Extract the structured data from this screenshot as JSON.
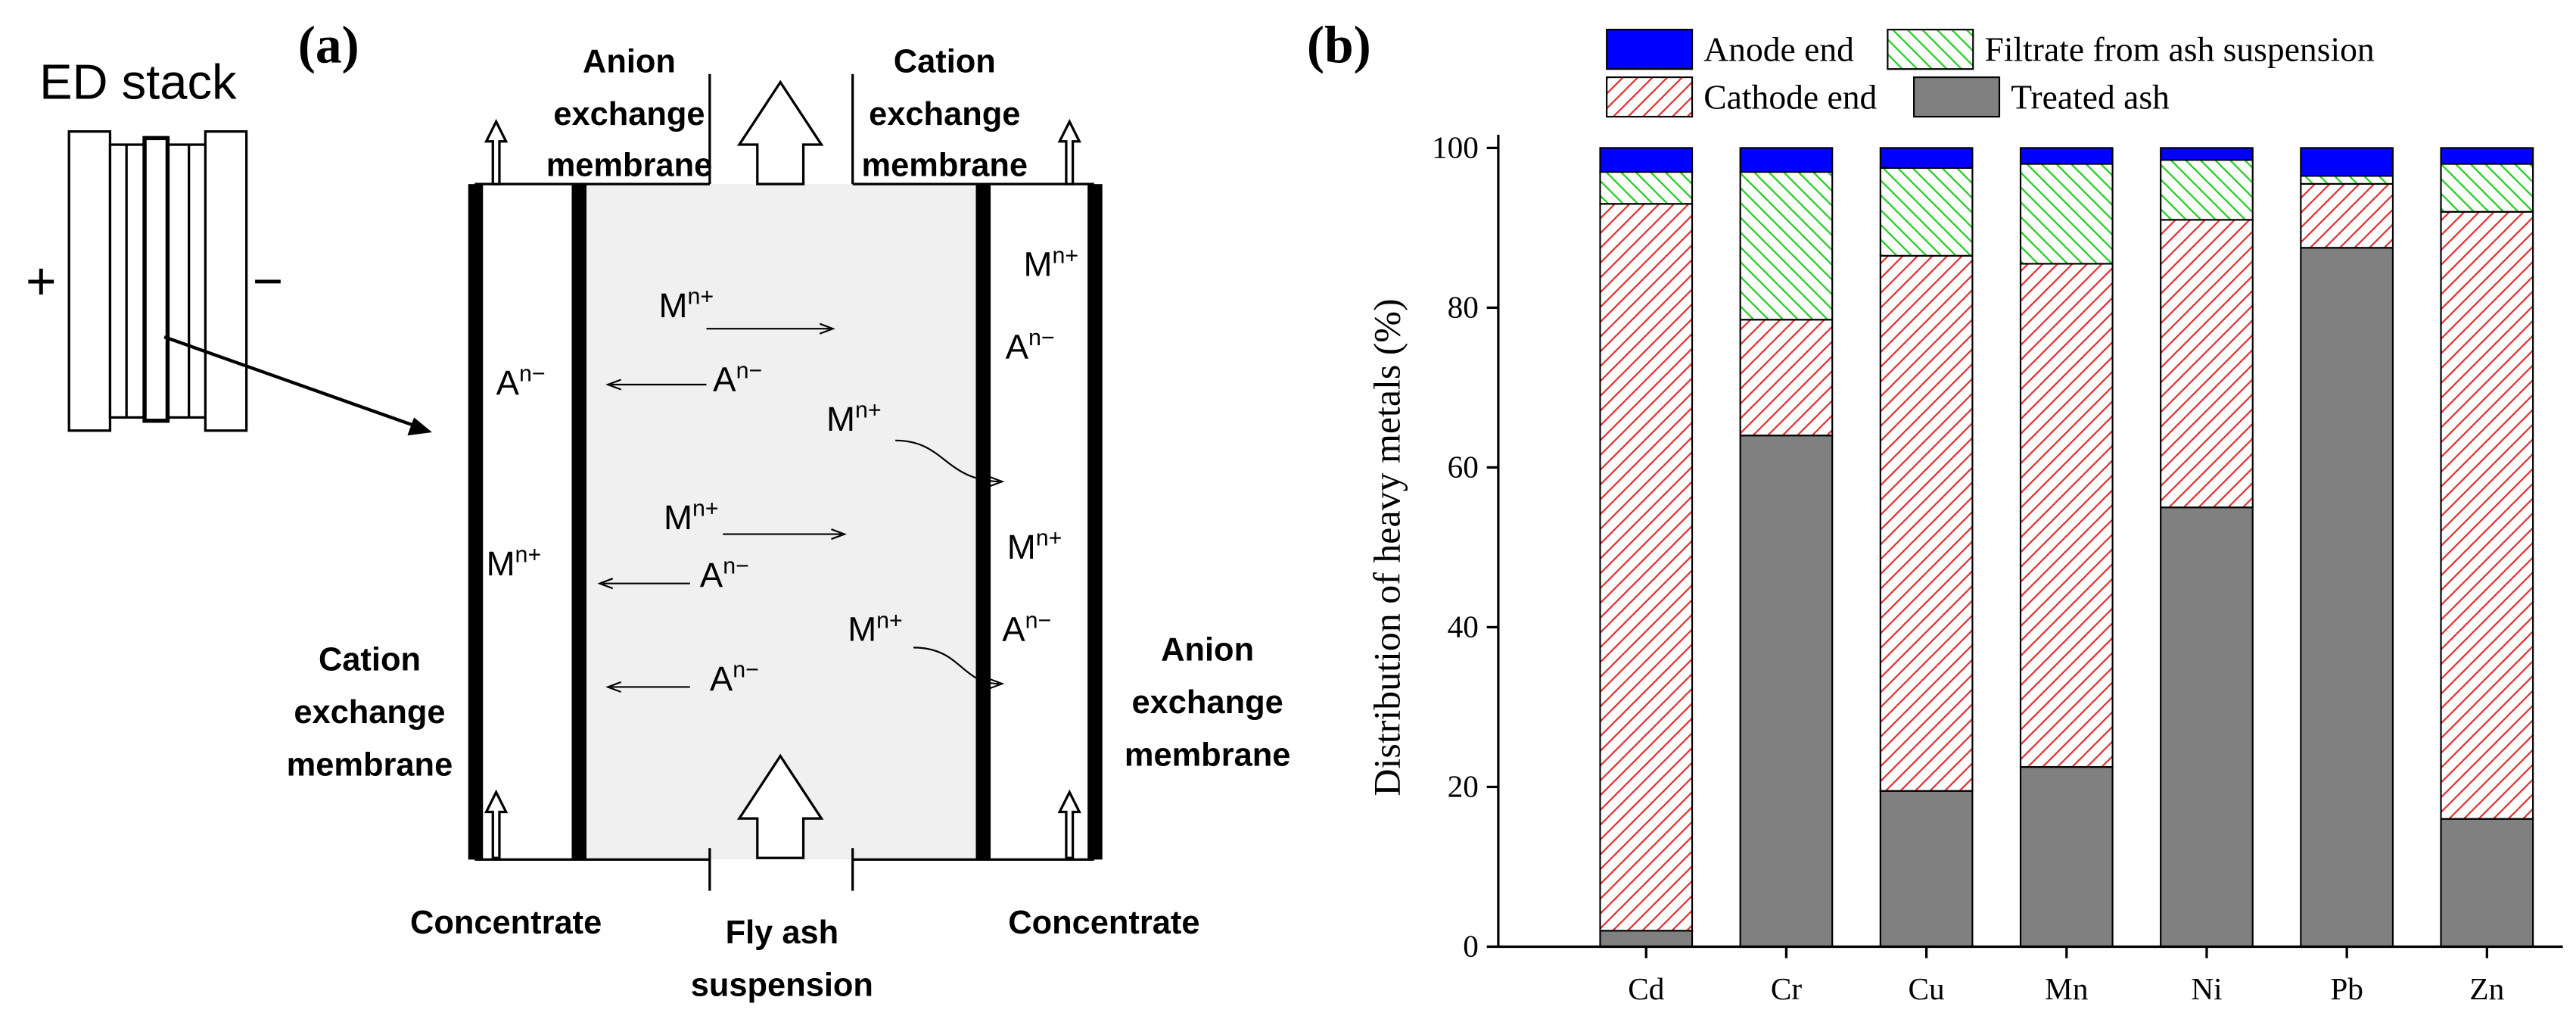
{
  "panel_a": {
    "label": "(a)",
    "stack_title": "ED stack",
    "plus": "+",
    "minus": "−",
    "top_left_membrane": [
      "Anion",
      "exchange",
      "membrane"
    ],
    "top_right_membrane": [
      "Cation",
      "exchange",
      "membrane"
    ],
    "left_membrane": [
      "Cation",
      "exchange",
      "membrane"
    ],
    "right_membrane": [
      "Anion",
      "exchange",
      "membrane"
    ],
    "concentrate_left": "Concentrate",
    "concentrate_right": "Concentrate",
    "feed": [
      "Fly ash",
      "suspension"
    ],
    "ions": [
      {
        "base": "M",
        "sup": "n+"
      },
      {
        "base": "A",
        "sup": "n−"
      },
      {
        "base": "A",
        "sup": "n−"
      },
      {
        "base": "M",
        "sup": "n+"
      },
      {
        "base": "A",
        "sup": "n−"
      },
      {
        "base": "M",
        "sup": "n+"
      },
      {
        "base": "M",
        "sup": "n+"
      },
      {
        "base": "A",
        "sup": "n−"
      },
      {
        "base": "M",
        "sup": "n+"
      },
      {
        "base": "M",
        "sup": "n+"
      },
      {
        "base": "A",
        "sup": "n−"
      },
      {
        "base": "M",
        "sup": "n+"
      },
      {
        "base": "A",
        "sup": "n−"
      }
    ]
  },
  "chart_data": {
    "type": "bar",
    "stacked": true,
    "panel_label": "(b)",
    "y_label": "Distribution of heavy metals (%)",
    "categories": [
      "Cd",
      "Cr",
      "Cu",
      "Mn",
      "Ni",
      "Pb",
      "Zn"
    ],
    "series": [
      {
        "name": "Treated ash",
        "color": "#808080",
        "hatch": null,
        "values": [
          2,
          64,
          19.5,
          22.5,
          55,
          87.5,
          16
        ]
      },
      {
        "name": "Cathode end",
        "color": "#e03030",
        "hatch": "/",
        "values": [
          91,
          14.5,
          67,
          63,
          36,
          8,
          76
        ]
      },
      {
        "name": "Filtrate from ash suspension",
        "color": "#22cc22",
        "hatch": "\\",
        "values": [
          4,
          18.5,
          11,
          12.5,
          7.5,
          1,
          6
        ]
      },
      {
        "name": "Anode end",
        "color": "#0000ff",
        "hatch": null,
        "values": [
          3,
          3,
          2.5,
          2,
          1.5,
          3.5,
          2
        ]
      }
    ],
    "ylim": [
      0,
      100
    ],
    "yticks": [
      0,
      20,
      40,
      60,
      80,
      100
    ],
    "grid": false
  }
}
